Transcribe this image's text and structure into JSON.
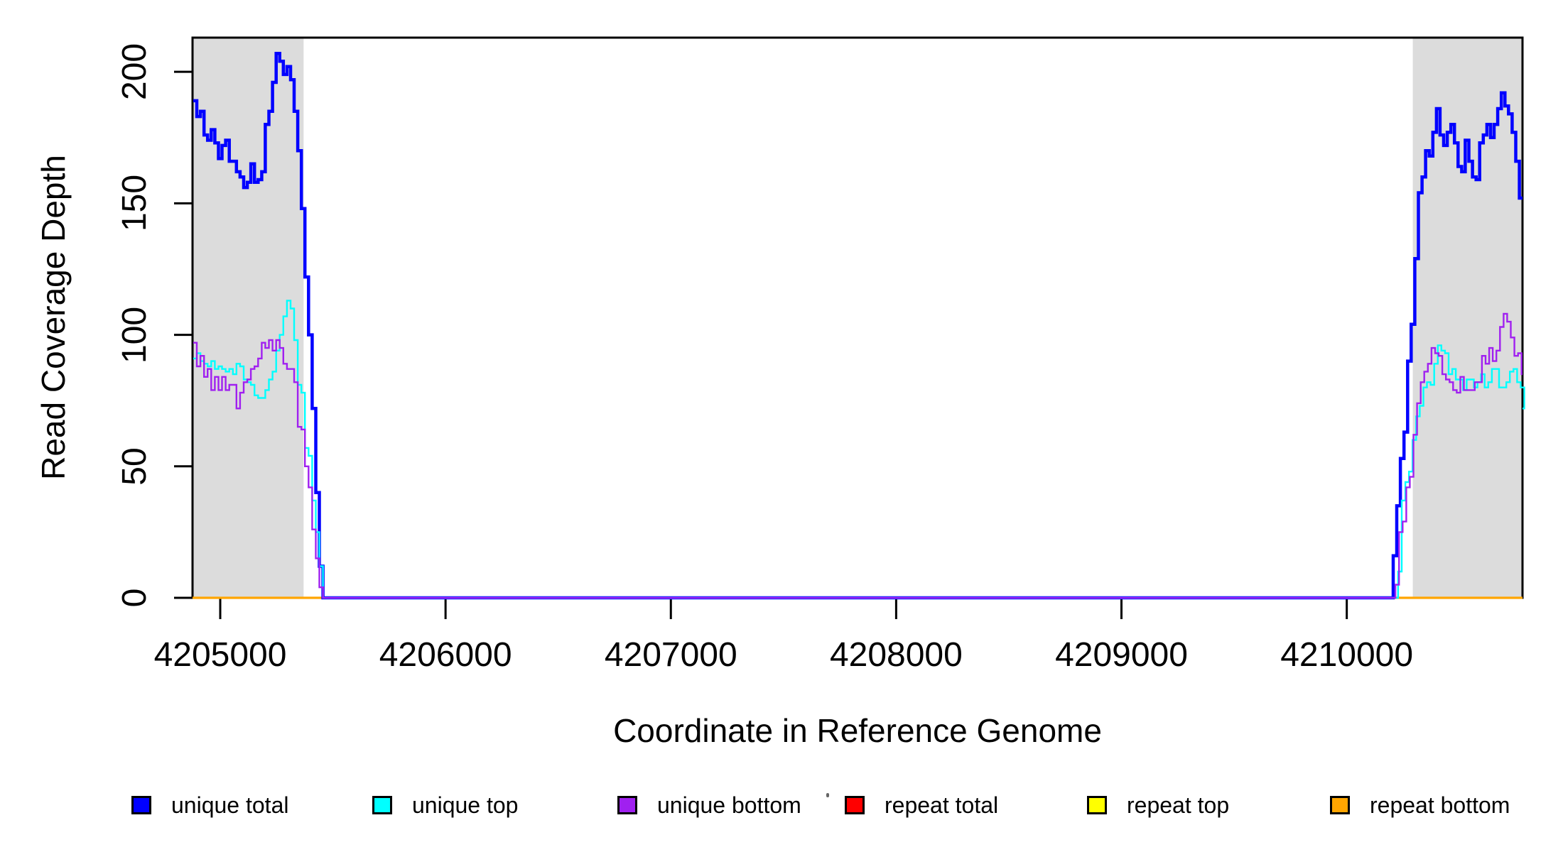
{
  "figure": {
    "background": "#FFFFFF",
    "plot_border_color": "#000000"
  },
  "chart_data": {
    "type": "line",
    "subtype": "step-coverage-profile",
    "title": "",
    "xlabel": "Coordinate in Reference Genome",
    "ylabel": "Read Coverage Depth",
    "xlim": [
      4204877,
      4210780
    ],
    "ylim": [
      0,
      213
    ],
    "x_ticks": [
      4205000,
      4206000,
      4207000,
      4208000,
      4209000,
      4210000
    ],
    "y_ticks": [
      0,
      50,
      100,
      150,
      200
    ],
    "grid": false,
    "legend_position": "bottom",
    "shaded_regions": [
      {
        "x_start": 4204877,
        "x_end": 4205370,
        "color": "#DCDCDC"
      },
      {
        "x_start": 4210293,
        "x_end": 4210780,
        "color": "#DCDCDC"
      }
    ],
    "series": [
      {
        "name": "unique total",
        "color": "#0000FF",
        "line_width": 4.5,
        "draw_order": 4,
        "segments": [
          {
            "x_start": 4204880,
            "dx": 16,
            "values": [
              189,
              183,
              185,
              176,
              174,
              178,
              173,
              167,
              172,
              174,
              166,
              166,
              162,
              160,
              156,
              158,
              165,
              158,
              159,
              162,
              180,
              185,
              196,
              207,
              204,
              199,
              202,
              197,
              185,
              170,
              148,
              122,
              100,
              72,
              40,
              12,
              0
            ]
          },
          {
            "x_start": 4210190,
            "dx": 16,
            "values": [
              0,
              16,
              35,
              53,
              63,
              90,
              104,
              129,
              154,
              160,
              170,
              168,
              177,
              186,
              176,
              172,
              177,
              180,
              173,
              164,
              162,
              174,
              166,
              160,
              159,
              173,
              176,
              180,
              175,
              180,
              186,
              192,
              187,
              184,
              177,
              166,
              152
            ]
          }
        ]
      },
      {
        "name": "unique top",
        "color": "#00FFFF",
        "line_width": 2.4,
        "draw_order": 5,
        "segments": [
          {
            "x_start": 4204880,
            "dx": 16,
            "values": [
              91,
              93,
              90,
              89,
              88,
              90,
              87,
              88,
              87,
              86,
              87,
              85,
              89,
              88,
              83,
              82,
              81,
              77,
              76,
              76,
              79,
              83,
              86,
              94,
              100,
              107,
              113,
              110,
              98,
              81,
              78,
              57,
              54,
              37,
              25,
              12,
              0
            ]
          },
          {
            "x_start": 4210212,
            "dx": 16,
            "values": [
              0,
              10,
              37,
              44,
              48,
              60,
              69,
              73,
              80,
              82,
              81,
              89,
              96,
              94,
              93,
              85,
              87,
              83,
              83,
              79,
              83,
              83,
              80,
              82,
              85,
              80,
              82,
              87,
              87,
              80,
              80,
              82,
              86,
              87,
              82,
              80,
              72
            ]
          }
        ]
      },
      {
        "name": "unique bottom",
        "color": "#A020F0",
        "line_width": 2.4,
        "draw_order": 6,
        "segments": [
          {
            "x_start": 4204880,
            "dx": 16,
            "values": [
              97,
              88,
              92,
              84,
              87,
              79,
              84,
              79,
              84,
              79,
              81,
              81,
              72,
              78,
              82,
              83,
              87,
              88,
              91,
              97,
              95,
              98,
              94,
              98,
              95,
              89,
              87,
              87,
              82,
              65,
              64,
              50,
              42,
              26,
              15,
              4,
              0
            ]
          },
          {
            "x_start": 4210200,
            "dx": 16,
            "values": [
              0,
              5,
              25,
              29,
              42,
              46,
              62,
              74,
              82,
              86,
              89,
              95,
              93,
              92,
              85,
              83,
              82,
              79,
              78,
              84,
              79,
              79,
              79,
              82,
              82,
              92,
              89,
              95,
              90,
              94,
              103,
              108,
              105,
              99,
              92,
              93,
              85
            ]
          }
        ]
      },
      {
        "name": "repeat total",
        "color": "#FF0000",
        "line_width": 3.0,
        "draw_order": 1,
        "constant": 0
      },
      {
        "name": "repeat top",
        "color": "#FFFF00",
        "line_width": 3.0,
        "draw_order": 2,
        "constant": 0
      },
      {
        "name": "repeat bottom",
        "color": "#FFA500",
        "line_width": 3.2,
        "draw_order": 3,
        "constant": 0
      }
    ]
  },
  "legend": {
    "items": [
      {
        "label": "unique total",
        "color": "#0000FF"
      },
      {
        "label": "unique top",
        "color": "#00FFFF"
      },
      {
        "label": "unique bottom",
        "color": "#A020F0"
      },
      {
        "label": "repeat total",
        "color": "#FF0000"
      },
      {
        "label": "repeat top",
        "color": "#FFFF00"
      },
      {
        "label": "repeat bottom",
        "color": "#FFA500"
      }
    ]
  }
}
